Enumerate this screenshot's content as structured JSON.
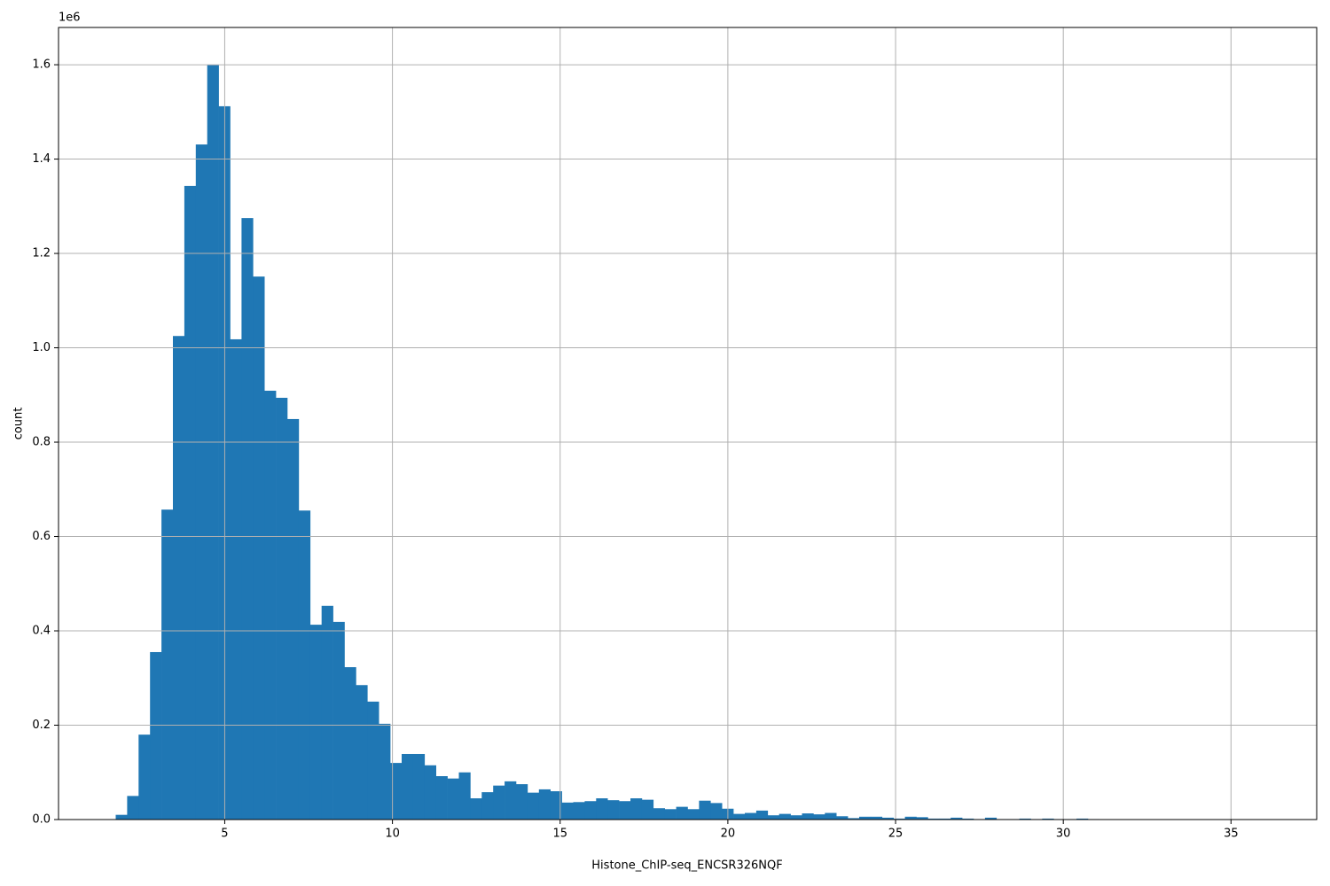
{
  "chart_data": {
    "type": "histogram",
    "x_label": "Histone_ChIP-seq_ENCSR326NQF",
    "y_label": "count",
    "y_offset_label": "1e6",
    "color": "#1f77b4",
    "grid": true,
    "bins": [
      1.75,
      2.091,
      2.432,
      2.773,
      3.114,
      3.455,
      3.796,
      4.137,
      4.478,
      4.819,
      5.16,
      5.501,
      5.842,
      6.183,
      6.524,
      6.865,
      7.206,
      7.547,
      7.888,
      8.229,
      8.57,
      8.911,
      9.252,
      9.593,
      9.934,
      10.275,
      10.616,
      10.957,
      11.298,
      11.639,
      11.98,
      12.321,
      12.662,
      13.003,
      13.344,
      13.685,
      14.026,
      14.367,
      14.708,
      15.049,
      15.39,
      15.731,
      16.072,
      16.413,
      16.754,
      17.095,
      17.436,
      17.777,
      18.118,
      18.459,
      18.8,
      19.141,
      19.482,
      19.823,
      20.164,
      20.505,
      20.846,
      21.187,
      21.528,
      21.869,
      22.21,
      22.551,
      22.892,
      23.233,
      23.574,
      23.915,
      24.256,
      24.597,
      24.938,
      25.279,
      25.62,
      25.961,
      26.302,
      26.643,
      26.984,
      27.325,
      27.666,
      28.007,
      28.348,
      28.689,
      29.03,
      29.371,
      29.712,
      30.053,
      30.394,
      30.735,
      31.076,
      31.417,
      31.758,
      32.099,
      32.44,
      32.781,
      33.122,
      33.463,
      33.804,
      34.145,
      34.486,
      34.827,
      35.168,
      35.509,
      35.85
    ],
    "counts": [
      10000,
      50000,
      180000,
      355000,
      657000,
      1025000,
      1343000,
      1431000,
      1600000,
      1512000,
      1018000,
      1275000,
      1151000,
      909000,
      894000,
      849000,
      655000,
      413000,
      453000,
      419000,
      323000,
      285000,
      250000,
      203000,
      120000,
      139000,
      139000,
      115000,
      92000,
      87000,
      100000,
      45000,
      58000,
      72000,
      81000,
      75000,
      57000,
      64000,
      60000,
      36000,
      37000,
      39000,
      45000,
      41000,
      39000,
      45000,
      42000,
      24000,
      22000,
      27000,
      22000,
      40000,
      35000,
      23000,
      12000,
      14000,
      19000,
      9000,
      12000,
      9000,
      13000,
      11000,
      14000,
      7000,
      3000,
      6000,
      6000,
      4000,
      2000,
      6000,
      5000,
      2000,
      2000,
      4000,
      2000,
      1000,
      4000,
      1000,
      1000,
      2000,
      1000,
      2000,
      1000,
      1000,
      2000,
      1000,
      500,
      500,
      500,
      500,
      500,
      500,
      500,
      500,
      500,
      500,
      500,
      500,
      500,
      500
    ],
    "xlim": [
      0.045,
      37.555
    ],
    "ylim": [
      0,
      1679000
    ],
    "xticks": [
      5,
      10,
      15,
      20,
      25,
      30,
      35
    ],
    "yticks": [
      {
        "value": 0,
        "label": "0.0"
      },
      {
        "value": 200000,
        "label": "0.2"
      },
      {
        "value": 400000,
        "label": "0.4"
      },
      {
        "value": 600000,
        "label": "0.6"
      },
      {
        "value": 800000,
        "label": "0.8"
      },
      {
        "value": 1000000,
        "label": "1.0"
      },
      {
        "value": 1200000,
        "label": "1.2"
      },
      {
        "value": 1400000,
        "label": "1.4"
      },
      {
        "value": 1600000,
        "label": "1.6"
      }
    ]
  }
}
